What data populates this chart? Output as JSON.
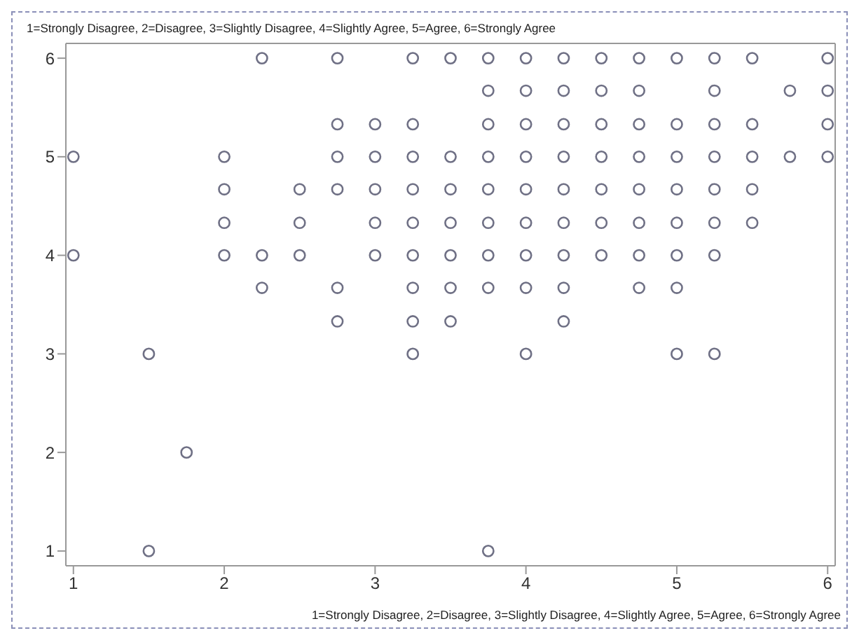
{
  "chart_data": {
    "type": "scatter",
    "title": "1=Strongly Disagree, 2=Disagree, 3=Slightly Disagree, 4=Slightly Agree, 5=Agree, 6=Strongly Agree",
    "xlabel": "1=Strongly Disagree, 2=Disagree, 3=Slightly Disagree, 4=Slightly Agree, 5=Agree, 6=Strongly Agree",
    "series": [
      {
        "color": "#6f7085",
        "x": [
          1,
          1,
          1.5,
          1.5,
          1.75,
          2,
          2,
          2,
          2,
          2.25,
          2.25,
          2.25,
          2.5,
          2.5,
          2.5,
          2.75,
          2.75,
          2.75,
          2.75,
          2.75,
          2.75,
          3,
          3,
          3,
          3,
          3,
          3.25,
          3.25,
          3.25,
          3.25,
          3.25,
          3.25,
          3.25,
          3.25,
          3.25,
          3.5,
          3.5,
          3.5,
          3.5,
          3.5,
          3.5,
          3.5,
          3.75,
          3.75,
          3.75,
          3.75,
          3.75,
          3.75,
          3.75,
          3.75,
          3.75,
          4,
          4,
          4,
          4,
          4,
          4,
          4,
          4,
          4,
          4.25,
          4.25,
          4.25,
          4.25,
          4.25,
          4.25,
          4.25,
          4.25,
          4.25,
          4.5,
          4.5,
          4.5,
          4.5,
          4.5,
          4.5,
          4.5,
          4.75,
          4.75,
          4.75,
          4.75,
          4.75,
          4.75,
          4.75,
          4.75,
          5,
          5,
          5,
          5,
          5,
          5,
          5,
          5,
          5.25,
          5.25,
          5.25,
          5.25,
          5.25,
          5.25,
          5.25,
          5.25,
          5.5,
          5.5,
          5.5,
          5.5,
          5.5,
          5.75,
          5.75,
          6,
          6,
          6,
          6
        ],
        "values": [
          5,
          4,
          3,
          1,
          2,
          5,
          4.67,
          4.33,
          4,
          6,
          4,
          3.67,
          4.67,
          4.33,
          4,
          6,
          5.33,
          5,
          4.67,
          3.67,
          3.33,
          5.33,
          5,
          4.67,
          4.33,
          4,
          6,
          5.33,
          5,
          4.67,
          4.33,
          4,
          3.67,
          3.33,
          3,
          6,
          5,
          4.67,
          4.33,
          4,
          3.67,
          3.33,
          6,
          5.67,
          5.33,
          5,
          4.67,
          4.33,
          4,
          3.67,
          1,
          6,
          5.67,
          5.33,
          5,
          4.67,
          4.33,
          4,
          3.67,
          3,
          6,
          5.67,
          5.33,
          5,
          4.67,
          4.33,
          4,
          3.67,
          3.33,
          6,
          5.67,
          5.33,
          5,
          4.67,
          4.33,
          4,
          6,
          5.67,
          5.33,
          5,
          4.67,
          4.33,
          4,
          3.67,
          6,
          5.33,
          5,
          4.67,
          4.33,
          4,
          3.67,
          3,
          6,
          5.67,
          5.33,
          5,
          4.67,
          4.33,
          4,
          3,
          6,
          5.33,
          5,
          4.67,
          4.33,
          5.67,
          5,
          6,
          5.67,
          5.33,
          5
        ]
      }
    ],
    "xlim": [
      0.95,
      6.05
    ],
    "ylim": [
      0.85,
      6.15
    ],
    "xticks": [
      1,
      2,
      3,
      4,
      5,
      6
    ],
    "yticks": [
      1,
      2,
      3,
      4,
      5,
      6
    ],
    "marker": "circle"
  }
}
